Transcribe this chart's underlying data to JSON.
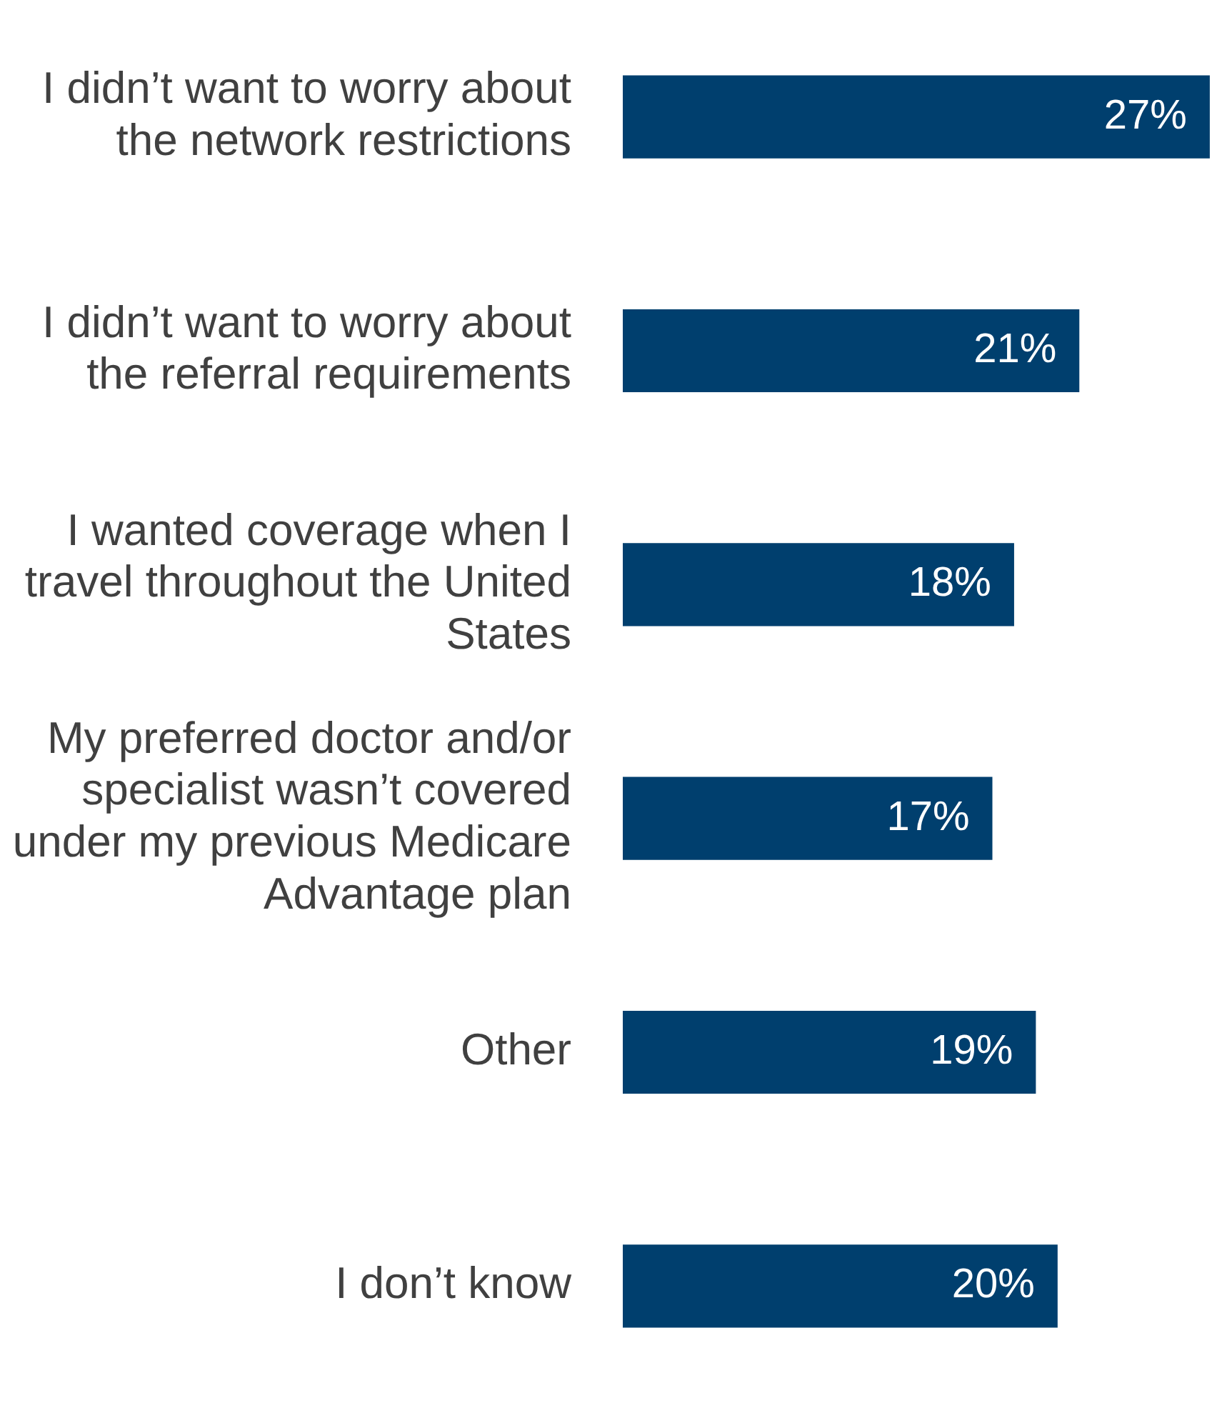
{
  "chart_data": {
    "type": "bar",
    "orientation": "horizontal",
    "categories": [
      "I didn’t want to worry about the network restrictions",
      "I didn’t want to worry about the referral requirements",
      "I wanted coverage when I travel throughout the United States",
      "My preferred doctor and/or specialist wasn’t covered under my previous Medicare Advantage plan",
      "Other",
      "I don’t know"
    ],
    "values": [
      27,
      21,
      18,
      17,
      19,
      20
    ],
    "color": "#003f6e",
    "xlim": [
      0,
      27.2
    ],
    "data_labels": true,
    "value_labels": [
      "27%",
      "21%",
      "18%",
      "17%",
      "19%",
      "20%"
    ],
    "tick_labels": "y",
    "grid": false,
    "legend": false
  }
}
